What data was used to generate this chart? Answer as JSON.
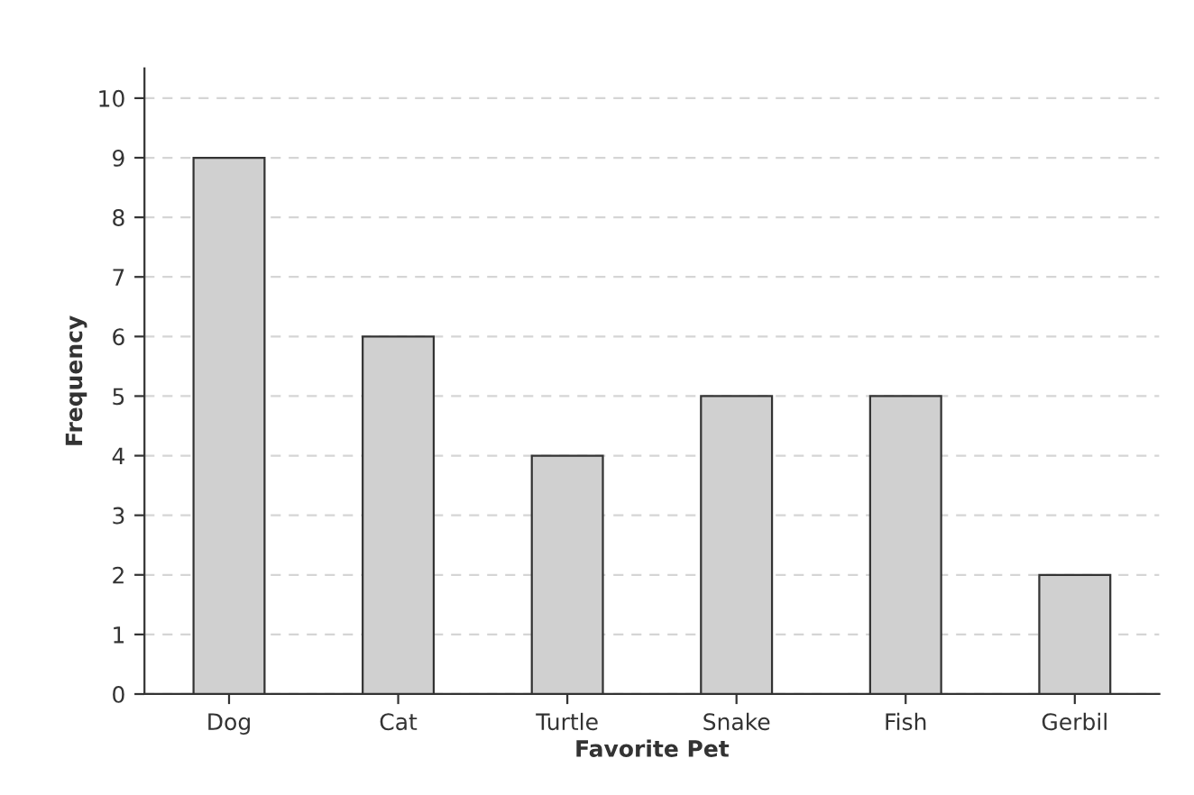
{
  "chart_data": {
    "type": "bar",
    "xlabel": "Favorite Pet",
    "ylabel": "Frequency",
    "categories": [
      "Dog",
      "Cat",
      "Turtle",
      "Snake",
      "Fish",
      "Gerbil"
    ],
    "values": [
      9,
      6,
      4,
      5,
      5,
      2
    ],
    "color": "#d0d0d0",
    "ylim": [
      0,
      10.5
    ],
    "yticks": [
      0,
      1,
      2,
      3,
      4,
      5,
      6,
      7,
      8,
      9,
      10
    ],
    "grid": "y",
    "line_style": "dashed"
  }
}
